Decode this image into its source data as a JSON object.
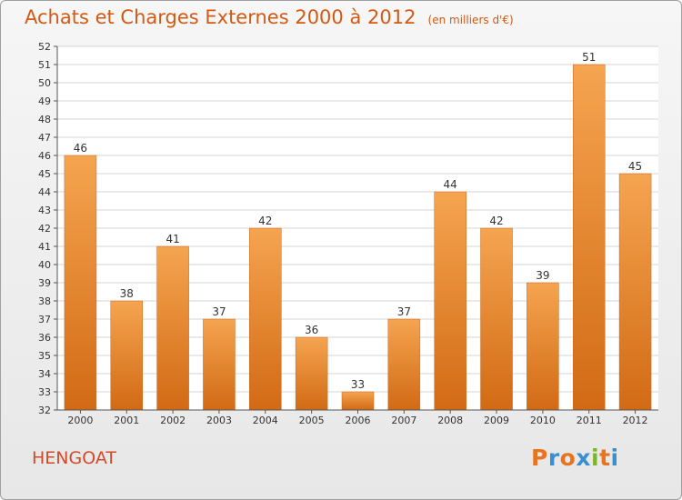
{
  "chart_data": {
    "type": "bar",
    "title": "Achats et Charges Externes 2000 à 2012",
    "subtitle": "(en milliers d'€)",
    "categories": [
      "2000",
      "2001",
      "2002",
      "2003",
      "2004",
      "2005",
      "2006",
      "2007",
      "2008",
      "2009",
      "2010",
      "2011",
      "2012"
    ],
    "values": [
      46,
      38,
      41,
      37,
      42,
      36,
      33,
      37,
      44,
      42,
      39,
      51,
      45
    ],
    "ylim": [
      32,
      52
    ],
    "yticks": [
      32,
      33,
      34,
      35,
      36,
      37,
      38,
      39,
      40,
      41,
      42,
      43,
      44,
      45,
      46,
      47,
      48,
      49,
      50,
      51,
      52
    ],
    "grid": true,
    "bar_color_top": "#f5a450",
    "bar_color_bottom": "#d26a14"
  },
  "place_name": "HENGOAT",
  "logo": {
    "letters": [
      "P",
      "r",
      "o",
      "x",
      "i",
      "t",
      "i"
    ],
    "colors": [
      "#e8741e",
      "#3a8fd0",
      "#e8741e",
      "#3a8fd0",
      "#7cb52a",
      "#e8741e",
      "#3a8fd0"
    ]
  }
}
